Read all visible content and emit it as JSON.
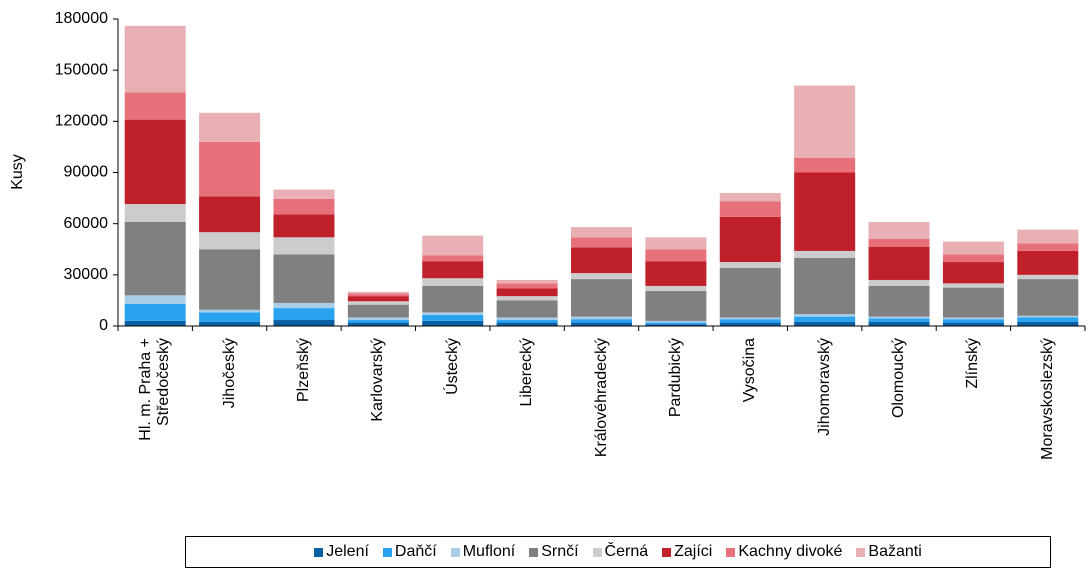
{
  "chart_data": {
    "type": "stacked_bar",
    "y_label": "Kusy",
    "categories": [
      "Hl. m. Praha + Středočeský",
      "Jihočeský",
      "Plzeňský",
      "Karlovarský",
      "Ústecký",
      "Liberecký",
      "Královéhradecký",
      "Pardubický",
      "Vysočina",
      "Jihomoravský",
      "Olomoucký",
      "Zlínský",
      "Moravskoslezský"
    ],
    "series": [
      {
        "name": "Jelení",
        "color": "#0b5fa5",
        "values": [
          3000,
          2500,
          3500,
          2000,
          3000,
          2000,
          2000,
          1000,
          2000,
          2500,
          2500,
          2000,
          2500
        ]
      },
      {
        "name": "Daňčí",
        "color": "#29a3f0",
        "values": [
          10000,
          5500,
          7000,
          1500,
          3500,
          1500,
          2000,
          1000,
          2000,
          3000,
          2000,
          2000,
          2500
        ]
      },
      {
        "name": "Mufloní",
        "color": "#a8cde8",
        "values": [
          5000,
          1500,
          3000,
          1500,
          1500,
          1500,
          1500,
          1000,
          1000,
          1500,
          1000,
          1000,
          1000
        ]
      },
      {
        "name": "Srnčí",
        "color": "#808080",
        "values": [
          43000,
          35500,
          28500,
          7500,
          15500,
          10000,
          22000,
          17500,
          29000,
          33000,
          18000,
          17500,
          21500
        ]
      },
      {
        "name": "Černá",
        "color": "#cccccc",
        "values": [
          10500,
          10000,
          10000,
          2000,
          4500,
          2500,
          3500,
          3000,
          3500,
          4000,
          3500,
          2500,
          2500
        ]
      },
      {
        "name": "Zajíci",
        "color": "#c0202a",
        "values": [
          49500,
          21000,
          13500,
          3000,
          10000,
          4500,
          15000,
          14500,
          26500,
          46000,
          19500,
          12500,
          14000
        ]
      },
      {
        "name": "Kachny divoké",
        "color": "#e8707a",
        "values": [
          16000,
          32000,
          9000,
          1500,
          3500,
          3000,
          6000,
          7000,
          9000,
          8500,
          4500,
          4500,
          4500
        ]
      },
      {
        "name": "Bažanti",
        "color": "#e8b0b5",
        "values": [
          39000,
          17000,
          5500,
          1000,
          11500,
          2000,
          6000,
          7000,
          5000,
          42500,
          10000,
          7500,
          8000
        ]
      }
    ],
    "ylim": [
      0,
      180000
    ],
    "yticks": [
      0,
      30000,
      60000,
      90000,
      120000,
      150000,
      180000
    ],
    "grid": false,
    "legend": "bottom"
  }
}
